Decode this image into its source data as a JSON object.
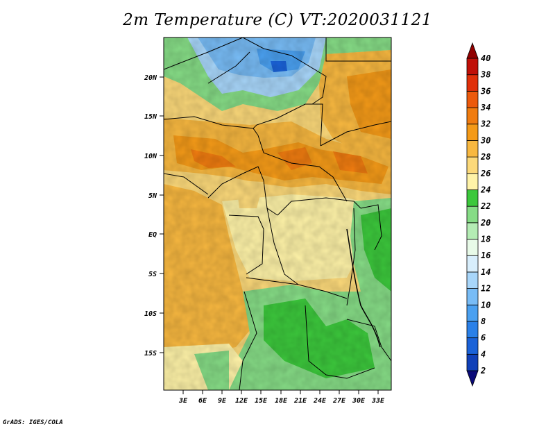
{
  "title": "2m Temperature (C) VT:2020031121",
  "credit": "GrADS: IGES/COLA",
  "map": {
    "lat_labels": [
      "20N",
      "15N",
      "10N",
      "5N",
      "EQ",
      "5S",
      "10S",
      "15S"
    ],
    "lon_labels": [
      "3E",
      "6E",
      "9E",
      "12E",
      "15E",
      "18E",
      "21E",
      "24E",
      "27E",
      "30E",
      "33E"
    ]
  },
  "colorbar": {
    "levels": [
      "2",
      "4",
      "6",
      "8",
      "10",
      "12",
      "14",
      "16",
      "18",
      "20",
      "22",
      "24",
      "26",
      "28",
      "30",
      "32",
      "34",
      "36",
      "38",
      "40"
    ],
    "colors": [
      "#0a0a78",
      "#1040b8",
      "#1a62d8",
      "#2a80e8",
      "#4aa0f0",
      "#78bcf6",
      "#a8d6fa",
      "#d8eefc",
      "#e8fae8",
      "#b4ecb4",
      "#86dc86",
      "#3cc83c",
      "#fff3a8",
      "#fcd97a",
      "#f8b840",
      "#f49a18",
      "#f07c10",
      "#ec5a0c",
      "#e0300a",
      "#c01008",
      "#900000"
    ]
  }
}
